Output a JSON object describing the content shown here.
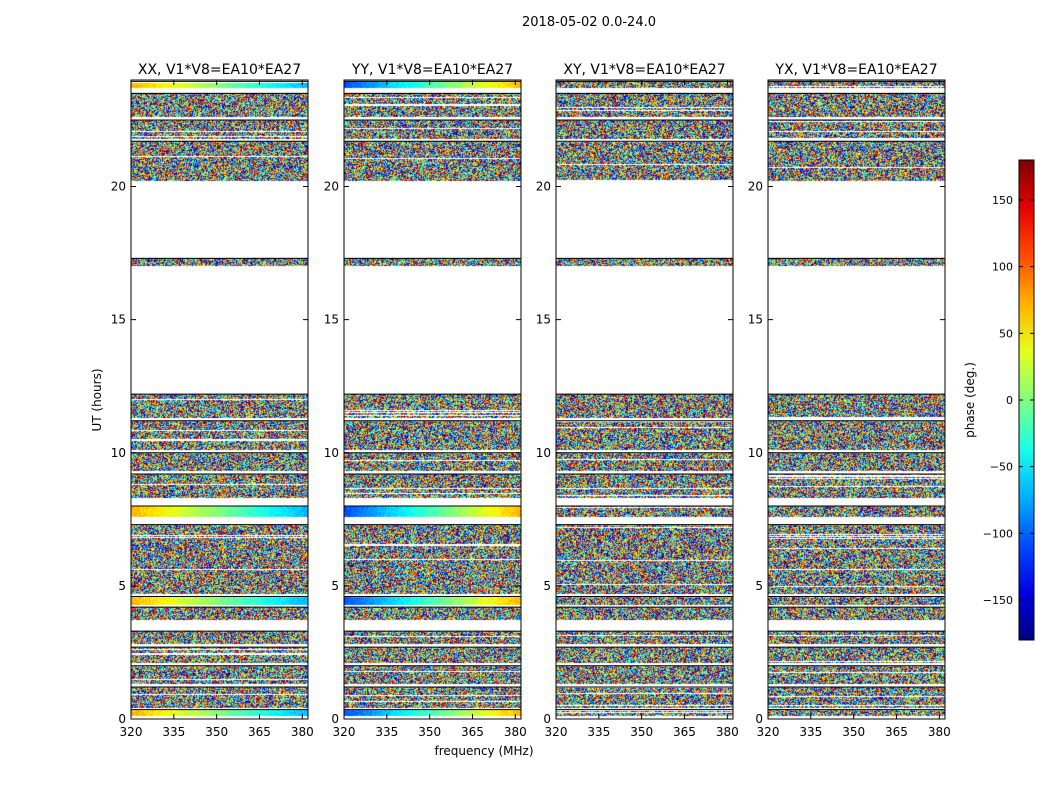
{
  "chart_data": {
    "type": "heatmap",
    "title": "2018-05-02 0.0-24.0",
    "xlabel": "frequency (MHz)",
    "ylabel": "UT (hours)",
    "xlim": [
      320,
      382
    ],
    "ylim": [
      0,
      24
    ],
    "xticks": [
      "320",
      "335",
      "350",
      "365",
      "380"
    ],
    "xtick_values": [
      320,
      335,
      350,
      365,
      380
    ],
    "yticks": [
      "0",
      "5",
      "10",
      "15",
      "20"
    ],
    "ytick_values": [
      0,
      5,
      10,
      15,
      20
    ],
    "panels": [
      {
        "title": "XX, V1*V8=EA10*EA27",
        "pol": "XX"
      },
      {
        "title": "YY, V1*V8=EA10*EA27",
        "pol": "YY"
      },
      {
        "title": "XY, V1*V8=EA10*EA27",
        "pol": "XY"
      },
      {
        "title": "YX, V1*V8=EA10*EA27",
        "pol": "YX"
      }
    ],
    "data_segments_hours": [
      [
        0.1,
        0.35
      ],
      [
        0.4,
        1.2
      ],
      [
        1.3,
        2.0
      ],
      [
        2.1,
        2.7
      ],
      [
        2.8,
        3.3
      ],
      [
        3.7,
        4.2
      ],
      [
        4.3,
        4.6
      ],
      [
        4.7,
        7.3
      ],
      [
        7.6,
        8.0
      ],
      [
        8.3,
        9.2
      ],
      [
        9.3,
        10.0
      ],
      [
        10.1,
        11.2
      ],
      [
        11.3,
        12.2
      ],
      [
        17.0,
        17.3
      ],
      [
        20.2,
        21.7
      ],
      [
        21.8,
        22.5
      ],
      [
        22.6,
        23.5
      ],
      [
        23.7,
        23.95
      ]
    ],
    "gap_hours": [
      [
        12.2,
        17.0
      ],
      [
        17.3,
        20.2
      ]
    ],
    "coherent_bands": [
      {
        "pols": [
          "XX",
          "YY"
        ],
        "from_hour": 7.6,
        "to_hour": 8.0
      },
      {
        "pols": [
          "XX",
          "YY"
        ],
        "from_hour": 4.3,
        "to_hour": 4.6
      },
      {
        "pols": [
          "XX",
          "YY"
        ],
        "from_hour": 0.1,
        "to_hour": 0.35
      },
      {
        "pols": [
          "XX",
          "YY"
        ],
        "from_hour": 23.7,
        "to_hour": 23.95
      }
    ],
    "colorbar": {
      "label": "phase (deg.)",
      "range": [
        -180,
        180
      ],
      "ticks": [
        -150,
        -100,
        -50,
        0,
        50,
        100,
        150
      ],
      "tick_labels": [
        "−150",
        "−100",
        "−50",
        "0",
        "50",
        "100",
        "150"
      ],
      "colormap": "jet"
    }
  }
}
